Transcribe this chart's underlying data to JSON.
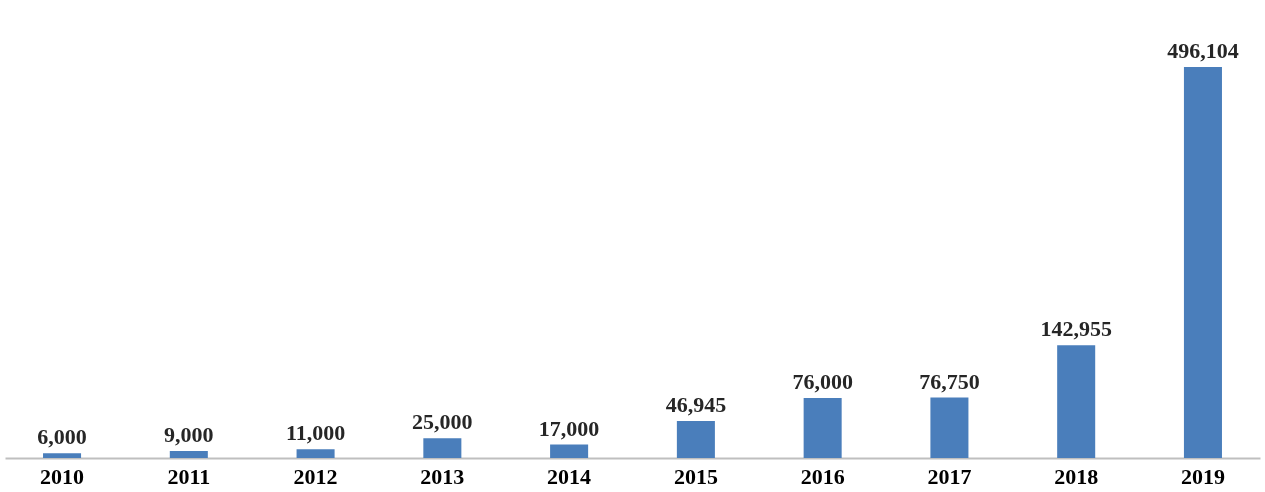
{
  "chart_data": {
    "type": "bar",
    "categories": [
      "2010",
      "2011",
      "2012",
      "2013",
      "2014",
      "2015",
      "2016",
      "2017",
      "2018",
      "2019"
    ],
    "values": [
      6000,
      9000,
      11000,
      25000,
      17000,
      46945,
      76000,
      76750,
      142955,
      496104
    ],
    "value_labels": [
      "6,000",
      "9,000",
      "11,000",
      "25,000",
      "17,000",
      "46,945",
      "76,000",
      "76,750",
      "142,955",
      "496,104"
    ],
    "color": "#4a7ebb",
    "grid": false
  }
}
